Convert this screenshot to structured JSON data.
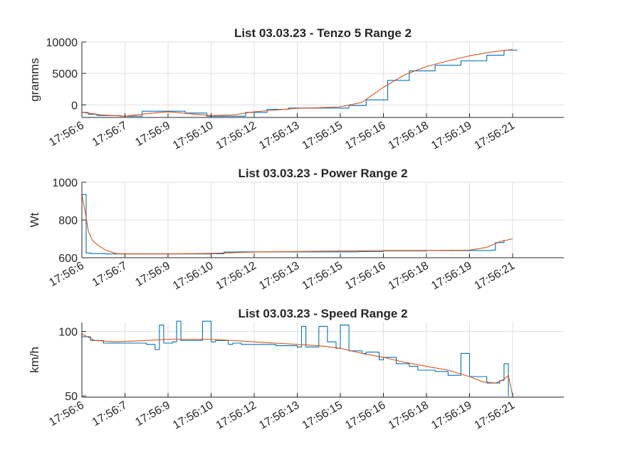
{
  "colors": {
    "raw": "#0072BD",
    "smooth": "#D95319",
    "grid": "#dfdfdf",
    "axis": "#262626"
  },
  "chart_data": [
    {
      "type": "line",
      "title": "List 03.03.23 - Tenzo 5 Range 2",
      "xlabel": "",
      "ylabel": "gramms",
      "xlim": [
        0,
        12.5
      ],
      "ylim": [
        -2000,
        10000
      ],
      "yticks": [
        0,
        5000,
        10000
      ],
      "ytick_labels": [
        "0",
        "5000",
        "10000"
      ],
      "x_tick_positions": [
        0,
        1,
        2,
        3,
        4,
        5,
        6,
        7,
        8,
        9,
        10
      ],
      "x_tick_labels": [
        "17:56:6",
        "17:56:7",
        "17:56:9",
        "17:56:10",
        "17:56:12",
        "17:56:13",
        "17:56:15",
        "17:56:16",
        "17:56:18",
        "17:56:19",
        "17:56:21"
      ],
      "grid": true,
      "series": [
        {
          "step": true,
          "x": [
            0,
            0.15,
            0.35,
            0.9,
            1.4,
            2.4,
            2.9,
            3.2,
            3.8,
            4.3,
            4.8,
            5.5,
            6.2,
            6.6,
            7.1,
            7.6,
            8.2,
            8.8,
            9.4,
            9.8,
            10.1
          ],
          "y": [
            -1200,
            -1500,
            -1700,
            -1800,
            -1000,
            -1300,
            -1800,
            -1800,
            -1200,
            -700,
            -500,
            -500,
            -100,
            800,
            3900,
            5400,
            6300,
            7000,
            7900,
            8700,
            8800
          ]
        },
        {
          "step": false,
          "x": [
            0,
            0.5,
            1.0,
            1.5,
            2.0,
            2.5,
            3.0,
            3.5,
            4.0,
            4.5,
            5.0,
            5.5,
            6.0,
            6.5,
            7.0,
            7.5,
            8.0,
            8.5,
            9.0,
            9.5,
            10.0
          ],
          "y": [
            -1200,
            -1600,
            -1800,
            -1400,
            -1100,
            -1400,
            -1700,
            -1600,
            -1100,
            -800,
            -550,
            -450,
            -300,
            400,
            2800,
            4800,
            6100,
            7000,
            7800,
            8400,
            8800
          ]
        }
      ]
    },
    {
      "type": "line",
      "title": "List 03.03.23 - Power Range 2",
      "xlabel": "",
      "ylabel": "Wt",
      "xlim": [
        0,
        12.5
      ],
      "ylim": [
        600,
        1000
      ],
      "yticks": [
        600,
        800,
        1000
      ],
      "ytick_labels": [
        "600",
        "800",
        "1000"
      ],
      "x_tick_positions": [
        0,
        1,
        2,
        3,
        4,
        5,
        6,
        7,
        8,
        9,
        10
      ],
      "x_tick_labels": [
        "17:56:6",
        "17:56:7",
        "17:56:9",
        "17:56:10",
        "17:56:12",
        "17:56:13",
        "17:56:15",
        "17:56:16",
        "17:56:18",
        "17:56:19",
        "17:56:21"
      ],
      "grid": true,
      "series": [
        {
          "step": true,
          "x": [
            0,
            0.1,
            0.2,
            0.55,
            3.0,
            3.3,
            3.6,
            6.4,
            7.0,
            8.0,
            9.5,
            9.6,
            9.8
          ],
          "y": [
            935,
            625,
            622,
            620,
            621,
            630,
            631,
            632,
            636,
            638,
            640,
            680,
            695
          ]
        },
        {
          "step": false,
          "x": [
            0,
            0.08,
            0.15,
            0.25,
            0.35,
            0.45,
            0.55,
            0.8,
            1.2,
            2.0,
            3.0,
            4.0,
            5.0,
            6.0,
            7.0,
            8.0,
            9.0,
            9.4,
            9.7,
            10.0
          ],
          "y": [
            935,
            840,
            740,
            690,
            670,
            655,
            640,
            622,
            620,
            620,
            623,
            630,
            633,
            636,
            638,
            638,
            640,
            655,
            685,
            700
          ]
        }
      ]
    },
    {
      "type": "line",
      "title": "List 03.03.23 - Speed Range 2",
      "xlabel": "",
      "ylabel": "km/h",
      "xlim": [
        0,
        12.5
      ],
      "ylim": [
        49,
        107
      ],
      "yticks": [
        50,
        100
      ],
      "ytick_labels": [
        "50",
        "100"
      ],
      "x_tick_positions": [
        0,
        1,
        2,
        3,
        4,
        5,
        6,
        7,
        8,
        9,
        10
      ],
      "x_tick_labels": [
        "17:56:6",
        "17:56:7",
        "17:56:9",
        "17:56:10",
        "17:56:12",
        "17:56:13",
        "17:56:15",
        "17:56:16",
        "17:56:18",
        "17:56:19",
        "17:56:21"
      ],
      "grid": true,
      "series": [
        {
          "step": true,
          "x": [
            0,
            0.2,
            0.5,
            1.5,
            1.7,
            1.8,
            1.9,
            2.1,
            2.2,
            2.3,
            2.8,
            3.0,
            3.1,
            3.4,
            3.5,
            3.7,
            4.2,
            4.5,
            5.0,
            5.1,
            5.2,
            5.5,
            5.7,
            5.9,
            6.0,
            6.2,
            6.5,
            6.6,
            6.9,
            7.0,
            7.3,
            7.6,
            7.8,
            8.2,
            8.5,
            8.8,
            9.0,
            9.4,
            9.7,
            9.8,
            9.9
          ],
          "y": [
            96,
            93,
            91,
            90,
            86,
            105,
            91,
            92,
            108,
            93,
            108,
            92,
            93,
            90,
            91,
            90,
            90,
            89,
            88,
            104,
            88,
            104,
            92,
            87,
            105,
            85,
            83,
            84,
            78,
            80,
            75,
            73,
            70,
            69,
            66,
            83,
            65,
            60,
            62,
            75,
            50
          ]
        },
        {
          "step": false,
          "x": [
            0,
            0.3,
            0.8,
            1.5,
            2.0,
            3.0,
            4.0,
            5.0,
            5.5,
            6.0,
            6.5,
            7.0,
            7.5,
            8.0,
            8.5,
            9.0,
            9.3,
            9.6,
            9.8,
            9.9,
            10.0
          ],
          "y": [
            98,
            93,
            92,
            93,
            94,
            94,
            92,
            90,
            89,
            87,
            83,
            80,
            76,
            73,
            70,
            65,
            61,
            60,
            63,
            66,
            50
          ]
        }
      ]
    }
  ]
}
